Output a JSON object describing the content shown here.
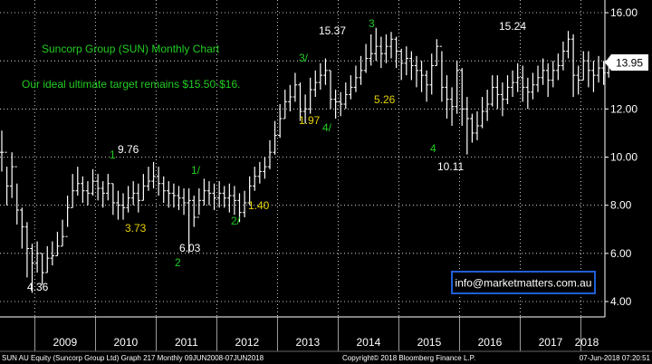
{
  "chart_data": {
    "type": "ohlc-bar",
    "title": "Suncorp Group (SUN) Monthly Chart",
    "subtitle": "Our ideal ultimate target remains $15.50-$16.",
    "ylim": [
      3.5,
      16.5
    ],
    "y_ticks": [
      "16.00",
      "14.00",
      "12.00",
      "10.00",
      "8.00",
      "6.00",
      "4.00"
    ],
    "y_tick_values": [
      16,
      14,
      12,
      10,
      8,
      6,
      4
    ],
    "x_ticks": [
      "2009",
      "2010",
      "2011",
      "2012",
      "2013",
      "2014",
      "2015",
      "2016",
      "2017",
      "2018"
    ],
    "last_price": "13.95",
    "last_price_value": 13.95,
    "grid": true,
    "months": [
      "2008-06",
      "2008-07",
      "2008-08",
      "2008-09",
      "2008-10",
      "2008-11",
      "2008-12",
      "2009-01",
      "2009-02",
      "2009-03",
      "2009-04",
      "2009-05",
      "2009-06",
      "2009-07",
      "2009-08",
      "2009-09",
      "2009-10",
      "2009-11",
      "2009-12",
      "2010-01",
      "2010-02",
      "2010-03",
      "2010-04",
      "2010-05",
      "2010-06",
      "2010-07",
      "2010-08",
      "2010-09",
      "2010-10",
      "2010-11",
      "2010-12",
      "2011-01",
      "2011-02",
      "2011-03",
      "2011-04",
      "2011-05",
      "2011-06",
      "2011-07",
      "2011-08",
      "2011-09",
      "2011-10",
      "2011-11",
      "2011-12",
      "2012-01",
      "2012-02",
      "2012-03",
      "2012-04",
      "2012-05",
      "2012-06",
      "2012-07",
      "2012-08",
      "2012-09",
      "2012-10",
      "2012-11",
      "2012-12",
      "2013-01",
      "2013-02",
      "2013-03",
      "2013-04",
      "2013-05",
      "2013-06",
      "2013-07",
      "2013-08",
      "2013-09",
      "2013-10",
      "2013-11",
      "2013-12",
      "2014-01",
      "2014-02",
      "2014-03",
      "2014-04",
      "2014-05",
      "2014-06",
      "2014-07",
      "2014-08",
      "2014-09",
      "2014-10",
      "2014-11",
      "2014-12",
      "2015-01",
      "2015-02",
      "2015-03",
      "2015-04",
      "2015-05",
      "2015-06",
      "2015-07",
      "2015-08",
      "2015-09",
      "2015-10",
      "2015-11",
      "2015-12",
      "2016-01",
      "2016-02",
      "2016-03",
      "2016-04",
      "2016-05",
      "2016-06",
      "2016-07",
      "2016-08",
      "2016-09",
      "2016-10",
      "2016-11",
      "2016-12",
      "2017-01",
      "2017-02",
      "2017-03",
      "2017-04",
      "2017-05",
      "2017-06",
      "2017-07",
      "2017-08",
      "2017-09",
      "2017-10",
      "2017-11",
      "2017-12",
      "2018-01",
      "2018-02",
      "2018-03",
      "2018-04",
      "2018-05",
      "2018-06"
    ],
    "close": [
      10.2,
      8.8,
      9.6,
      7.8,
      7.1,
      6.2,
      5.6,
      6.0,
      5.2,
      5.8,
      5.9,
      6.3,
      6.7,
      7.9,
      8.6,
      8.9,
      8.6,
      8.5,
      9.0,
      8.7,
      8.5,
      8.9,
      8.1,
      8.0,
      7.9,
      8.3,
      8.5,
      8.2,
      8.8,
      9.0,
      9.2,
      8.9,
      8.6,
      8.5,
      8.4,
      8.3,
      8.1,
      8.2,
      7.5,
      8.2,
      8.6,
      8.5,
      8.3,
      8.5,
      8.3,
      8.4,
      8.2,
      7.7,
      8.1,
      8.8,
      9.2,
      9.4,
      9.6,
      10.2,
      10.9,
      11.6,
      12.3,
      12.5,
      13.0,
      11.9,
      12.0,
      12.8,
      13.1,
      13.4,
      13.6,
      12.4,
      12.3,
      12.2,
      12.6,
      12.9,
      13.3,
      13.6,
      14.1,
      14.3,
      14.6,
      14.3,
      14.6,
      14.9,
      14.4,
      13.9,
      14.1,
      13.8,
      13.6,
      13.4,
      13.0,
      13.8,
      14.6,
      12.9,
      12.4,
      12.1,
      13.6,
      12.0,
      11.6,
      11.0,
      11.3,
      11.9,
      12.2,
      12.9,
      12.6,
      12.4,
      12.9,
      13.1,
      13.3,
      12.9,
      12.7,
      13.0,
      13.3,
      13.6,
      13.2,
      13.6,
      13.8,
      14.4,
      14.9,
      13.4,
      13.2,
      14.0,
      13.6,
      13.4,
      13.7,
      13.5,
      13.95
    ],
    "high": [
      11.1,
      9.6,
      10.2,
      8.9,
      7.9,
      7.3,
      6.4,
      6.5,
      6.0,
      6.3,
      6.5,
      6.9,
      7.4,
      8.4,
      9.3,
      9.6,
      9.2,
      9.0,
      9.5,
      9.3,
      9.0,
      9.3,
      8.9,
      8.6,
      8.5,
      8.8,
      9.0,
      8.9,
      9.3,
      9.6,
      9.8,
      9.6,
      9.2,
      9.0,
      8.9,
      8.8,
      8.7,
      8.7,
      8.4,
      8.7,
      9.1,
      9.0,
      8.9,
      9.0,
      8.8,
      8.9,
      8.8,
      8.5,
      8.6,
      9.2,
      9.6,
      9.8,
      10.0,
      10.7,
      11.5,
      12.2,
      12.8,
      13.0,
      13.5,
      13.1,
      12.6,
      13.3,
      13.6,
      13.9,
      14.1,
      13.6,
      12.8,
      12.7,
      13.1,
      13.4,
      13.8,
      14.2,
      14.7,
      15.1,
      15.37,
      15.0,
      15.1,
      15.2,
      15.0,
      14.5,
      14.6,
      14.4,
      14.2,
      14.0,
      13.6,
      14.3,
      14.9,
      14.4,
      13.4,
      12.9,
      14.0,
      13.7,
      12.5,
      11.8,
      11.9,
      12.5,
      12.8,
      13.4,
      13.4,
      13.1,
      13.4,
      13.6,
      13.9,
      13.8,
      13.3,
      13.5,
      13.8,
      14.1,
      13.9,
      14.0,
      14.3,
      14.8,
      15.24,
      15.1,
      13.8,
      14.4,
      14.4,
      14.0,
      14.2,
      14.0,
      14.1
    ],
    "low": [
      9.4,
      8.0,
      8.3,
      7.2,
      6.2,
      5.0,
      4.36,
      5.2,
      4.7,
      5.2,
      5.5,
      5.9,
      6.3,
      7.1,
      7.9,
      8.4,
      8.1,
      8.0,
      8.4,
      8.2,
      7.9,
      8.2,
      7.6,
      7.4,
      7.4,
      7.7,
      8.0,
      7.7,
      8.2,
      8.6,
      8.7,
      8.4,
      8.1,
      7.9,
      7.9,
      7.8,
      7.6,
      6.03,
      7.1,
      7.6,
      8.0,
      8.0,
      7.8,
      7.9,
      7.9,
      7.7,
      7.6,
      7.3,
      7.5,
      8.0,
      8.6,
      8.9,
      9.1,
      9.5,
      10.1,
      10.8,
      11.6,
      11.9,
      12.3,
      11.5,
      11.4,
      11.8,
      12.5,
      12.8,
      13.0,
      12.0,
      11.6,
      11.7,
      12.0,
      12.4,
      12.7,
      13.0,
      13.5,
      13.8,
      14.0,
      13.7,
      13.9,
      14.1,
      13.7,
      13.2,
      13.4,
      13.2,
      12.9,
      12.7,
      12.3,
      12.6,
      13.8,
      12.3,
      11.6,
      11.3,
      11.8,
      11.3,
      10.11,
      10.6,
      10.7,
      11.2,
      11.5,
      12.1,
      12.0,
      11.7,
      12.2,
      12.5,
      12.7,
      12.3,
      12.0,
      12.4,
      12.7,
      13.0,
      12.5,
      12.9,
      13.2,
      13.6,
      14.1,
      12.5,
      12.6,
      13.2,
      12.9,
      12.7,
      13.1,
      13.0,
      13.3
    ]
  },
  "annotations": [
    {
      "label": "9.76",
      "color": "#ffffff"
    },
    {
      "label": "1",
      "color": "#22cc22"
    },
    {
      "label": "3.73",
      "color": "#e6d200"
    },
    {
      "label": "4.36",
      "color": "#ffffff"
    },
    {
      "label": "6.03",
      "color": "#ffffff"
    },
    {
      "label": "2",
      "color": "#22cc22"
    },
    {
      "label": "1/",
      "color": "#22cc22"
    },
    {
      "label": "1.40",
      "color": "#e6d200"
    },
    {
      "label": "2/",
      "color": "#22cc22"
    },
    {
      "label": "3/",
      "color": "#22cc22"
    },
    {
      "label": "1.97",
      "color": "#e6d200"
    },
    {
      "label": "4/",
      "color": "#22cc22"
    },
    {
      "label": "15.37",
      "color": "#ffffff"
    },
    {
      "label": "3",
      "color": "#22cc22"
    },
    {
      "label": "5.26",
      "color": "#e6d200"
    },
    {
      "label": "4",
      "color": "#22cc22"
    },
    {
      "label": "10.11",
      "color": "#ffffff"
    },
    {
      "label": "15.24",
      "color": "#ffffff"
    }
  ],
  "info_box": "info@marketmatters.com.au",
  "footer": {
    "left": "SUN AU Equity (Suncorp Group Ltd) Graph 217  Monthly 09JUN2008-07JUN2018",
    "center": "Copyright© 2018 Bloomberg Finance L.P.",
    "right": "07-Jun-2018 07:20:51"
  },
  "colors": {
    "background": "#000000",
    "bars": "#ffffff",
    "grid": "#ffffff",
    "title": "#22cc22",
    "info_box_border": "#1f5fd6",
    "price_label_bg": "#ffffff"
  }
}
